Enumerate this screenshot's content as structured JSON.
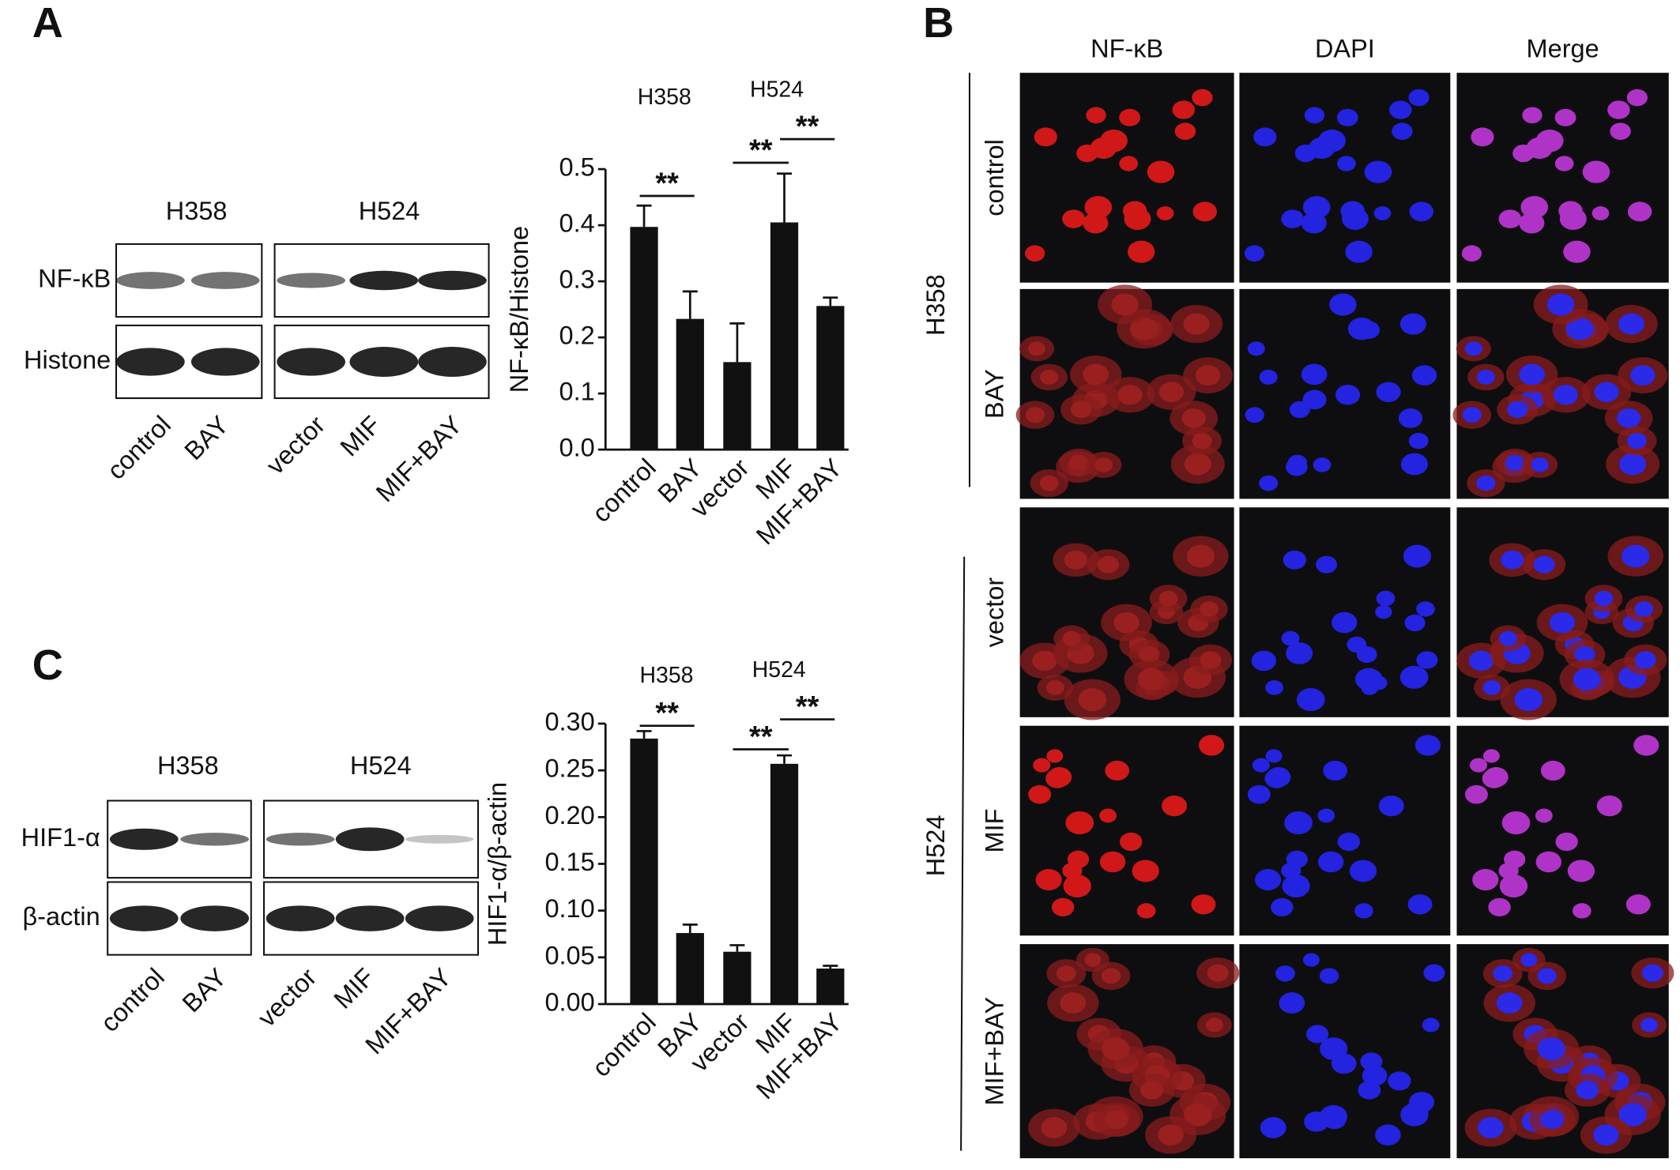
{
  "panel_labels": [
    "A",
    "B",
    "C"
  ],
  "blot_a": {
    "groups": [
      "H358",
      "H524"
    ],
    "rows": [
      "NF-κB",
      "Histone"
    ],
    "lanes": [
      "control",
      "BAY",
      "vector",
      "MIF",
      "MIF+BAY"
    ]
  },
  "blot_c": {
    "groups": [
      "H358",
      "H524"
    ],
    "rows": [
      "HIF1-α",
      "β-actin"
    ],
    "lanes": [
      "control",
      "BAY",
      "vector",
      "MIF",
      "MIF+BAY"
    ]
  },
  "microscopy": {
    "columns": [
      "NF-κB",
      "DAPI",
      "Merge"
    ],
    "cell_lines": [
      "H358",
      "H524"
    ],
    "rows": [
      "control",
      "BAY",
      "vector",
      "MIF",
      "MIF+BAY"
    ]
  },
  "chart_data": [
    {
      "type": "bar",
      "y_label": "NF-κB/Histone",
      "groups": [
        "H358",
        "H524"
      ],
      "annotations": [
        "**",
        "**",
        "**"
      ],
      "categories": [
        "control",
        "BAY",
        "vector",
        "MIF",
        "MIF+BAY"
      ],
      "values": [
        0.397,
        0.233,
        0.156,
        0.405,
        0.256
      ],
      "errors": [
        0.038,
        0.049,
        0.069,
        0.087,
        0.015
      ],
      "color": "#111111",
      "ylim": [
        0,
        0.5
      ],
      "yticks": [
        {
          "value": 0,
          "label": "0.0"
        },
        0.1,
        0.2,
        0.3,
        0.4,
        0.5
      ]
    },
    {
      "type": "bar",
      "y_label": "HIF1-α/β-actin",
      "groups": [
        "H358",
        "H524"
      ],
      "annotations": [
        "**",
        "**",
        "**"
      ],
      "categories": [
        "control",
        "BAY",
        "vector",
        "MIF",
        "MIF+BAY"
      ],
      "values": [
        0.284,
        0.076,
        0.056,
        0.257,
        0.038
      ],
      "errors": [
        0.008,
        0.009,
        0.007,
        0.009,
        0.003
      ],
      "color": "#111111",
      "ylim": [
        0,
        0.3
      ],
      "yticks": [
        {
          "value": 0,
          "label": "0.00"
        },
        0.05,
        {
          "value": 0.1,
          "label": "0.10"
        },
        0.15,
        {
          "value": 0.2,
          "label": "0.20"
        },
        0.25,
        {
          "value": 0.3,
          "label": "0.30"
        }
      ]
    }
  ]
}
